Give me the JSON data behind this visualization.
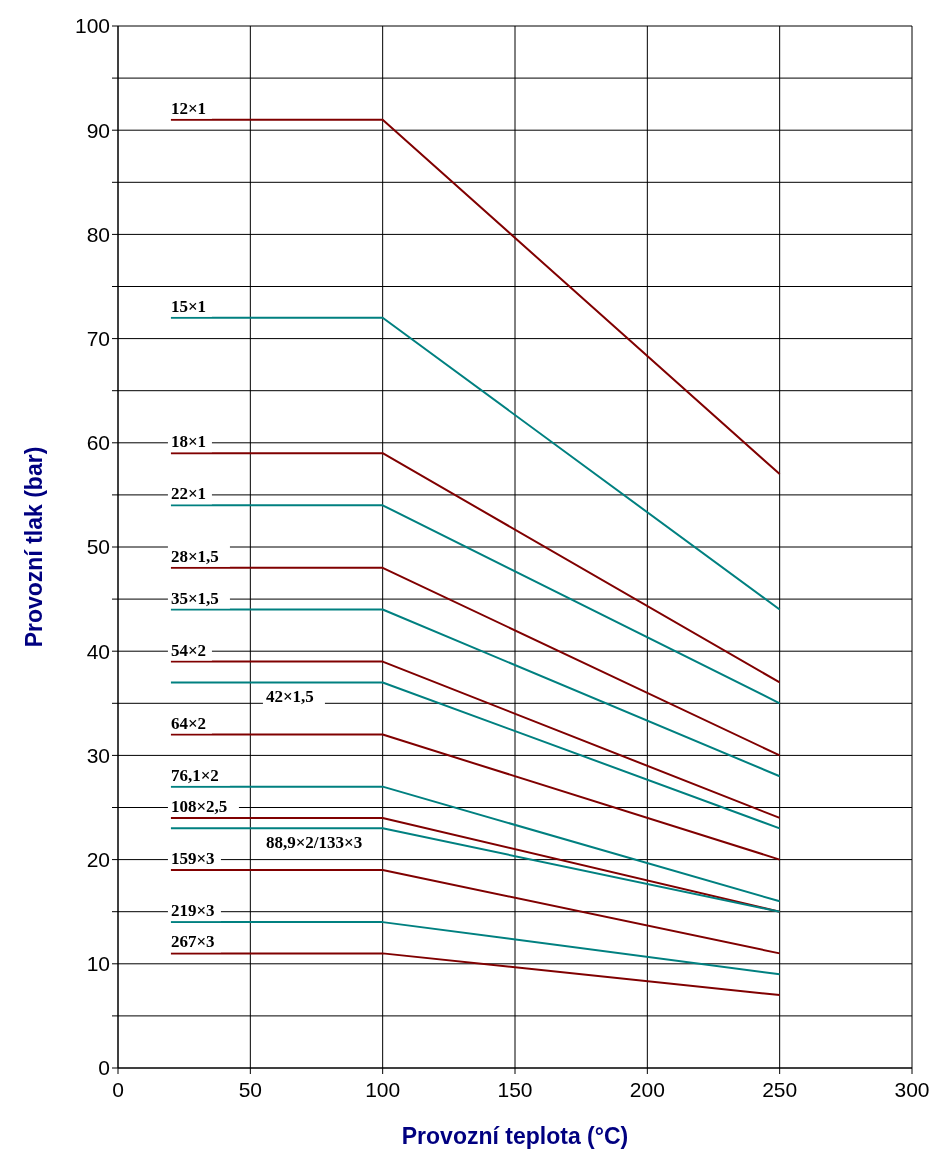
{
  "chart_data": {
    "type": "line",
    "xlabel": "Provozní teplota  (°C)",
    "ylabel": "Provozní tlak (bar)",
    "x": [
      20,
      100,
      250
    ],
    "xlim": [
      0,
      300
    ],
    "xticks": [
      0,
      50,
      100,
      150,
      200,
      250,
      300
    ],
    "ylim": [
      0,
      100
    ],
    "yticks": [
      0,
      {
        "value": 5,
        "label": null
      },
      10,
      {
        "value": 15,
        "label": null
      },
      20,
      {
        "value": 25,
        "label": null
      },
      30,
      {
        "value": 35,
        "label": null
      },
      40,
      {
        "value": 45,
        "label": null
      },
      50,
      {
        "value": 55,
        "label": null
      },
      60,
      {
        "value": 65,
        "label": null
      },
      70,
      {
        "value": 75,
        "label": null
      },
      80,
      {
        "value": 85,
        "label": null
      },
      90,
      {
        "value": 95,
        "label": null
      },
      100
    ],
    "grid": true,
    "legend": false,
    "marker": "none",
    "line_style": "solid",
    "series": [
      {
        "name": "12×1",
        "color": "#800000",
        "values": [
          91,
          91,
          57
        ]
      },
      {
        "name": "15×1",
        "color": "#008080",
        "values": [
          72,
          72,
          44
        ]
      },
      {
        "name": "18×1",
        "color": "#800000",
        "values": [
          59,
          59,
          37
        ]
      },
      {
        "name": "22×1",
        "color": "#008080",
        "values": [
          54,
          54,
          35
        ]
      },
      {
        "name": "28×1,5",
        "color": "#800000",
        "values": [
          48,
          48,
          30
        ]
      },
      {
        "name": "35×1,5",
        "color": "#008080",
        "values": [
          44,
          44,
          28
        ]
      },
      {
        "name": "54×2",
        "color": "#800000",
        "values": [
          39,
          39,
          24
        ]
      },
      {
        "name": "42×1,5",
        "color": "#008080",
        "values": [
          37,
          37,
          23
        ]
      },
      {
        "name": "64×2",
        "color": "#800000",
        "values": [
          32,
          32,
          20
        ]
      },
      {
        "name": "76,1×2",
        "color": "#008080",
        "values": [
          27,
          27,
          16
        ]
      },
      {
        "name": "108×2,5",
        "color": "#800000",
        "values": [
          24,
          24,
          15
        ]
      },
      {
        "name": "88,9×2/133×3",
        "color": "#008080",
        "values": [
          23,
          23,
          15
        ]
      },
      {
        "name": "159×3",
        "color": "#800000",
        "values": [
          19,
          19,
          11
        ]
      },
      {
        "name": "219×3",
        "color": "#008080",
        "values": [
          14,
          14,
          9
        ]
      },
      {
        "name": "267×3",
        "color": "#800000",
        "values": [
          11,
          11,
          7
        ]
      }
    ]
  }
}
